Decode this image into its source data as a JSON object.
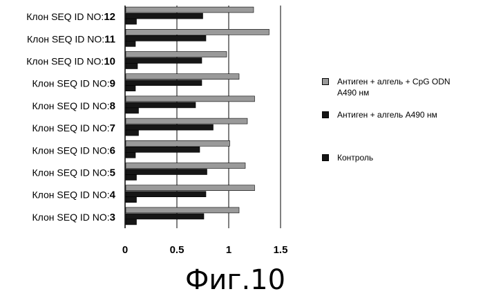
{
  "chart_data": {
    "type": "bar",
    "orientation": "horizontal",
    "categories": [
      {
        "prefix": "Клон SEQ ID NO:",
        "num": "3"
      },
      {
        "prefix": "Клон SEQ ID NO:",
        "num": "4"
      },
      {
        "prefix": "Клон SEQ ID NO:",
        "num": "5"
      },
      {
        "prefix": "Клон SEQ ID NO:",
        "num": "6"
      },
      {
        "prefix": "Клон SEQ ID NO:",
        "num": "7"
      },
      {
        "prefix": "Клон SEQ ID NO:",
        "num": "8"
      },
      {
        "prefix": "Клон SEQ ID NO:",
        "num": "9"
      },
      {
        "prefix": "Клон SEQ ID NO:",
        "num": "10"
      },
      {
        "prefix": "Клон SEQ ID NO:",
        "num": "11"
      },
      {
        "prefix": "Клон SEQ ID NO:",
        "num": "12"
      }
    ],
    "series": [
      {
        "name": "Антиген + алгель + CpG ODN A490 нм",
        "name_lines": [
          "Антиген + алгель + CpG ODN",
          "A490 нм"
        ],
        "color": "#9a9a9a",
        "values": [
          1.1,
          1.25,
          1.16,
          1.01,
          1.18,
          1.25,
          1.1,
          0.98,
          1.39,
          1.24
        ]
      },
      {
        "name": "Антиген + алгель A490 нм",
        "name_lines": [
          "Антиген + алгель A490 нм"
        ],
        "color": "#161616",
        "values": [
          0.76,
          0.78,
          0.79,
          0.72,
          0.85,
          0.68,
          0.74,
          0.74,
          0.78,
          0.75
        ]
      },
      {
        "name": "Контроль",
        "name_lines": [
          "Контроль"
        ],
        "color": "#161616",
        "values": [
          0.11,
          0.11,
          0.11,
          0.1,
          0.13,
          0.13,
          0.1,
          0.12,
          0.1,
          0.11
        ]
      }
    ],
    "xticks": [
      "0",
      "0.5",
      "1",
      "1.5"
    ],
    "xlim": [
      0,
      1.5
    ],
    "grid": true,
    "legend_position": "right"
  },
  "caption": "Фиг.10"
}
